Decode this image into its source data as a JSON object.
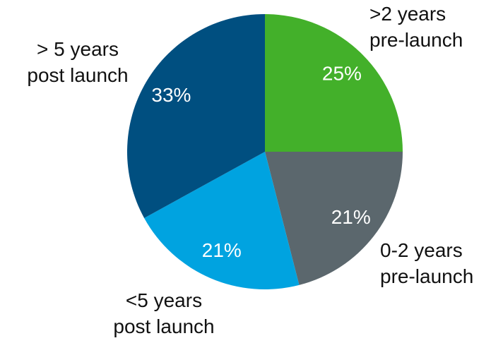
{
  "chart_data": {
    "type": "pie",
    "categories": [
      ">2 years\npre-launch",
      "0-2 years\npre-launch",
      "<5 years\npost launch",
      "> 5 years\npost launch"
    ],
    "values": [
      25,
      21,
      21,
      33
    ],
    "value_labels": [
      "25%",
      "21%",
      "21%",
      "33%"
    ],
    "colors": [
      "#43b02a",
      "#5b676d",
      "#00a3e0",
      "#004f80"
    ]
  }
}
